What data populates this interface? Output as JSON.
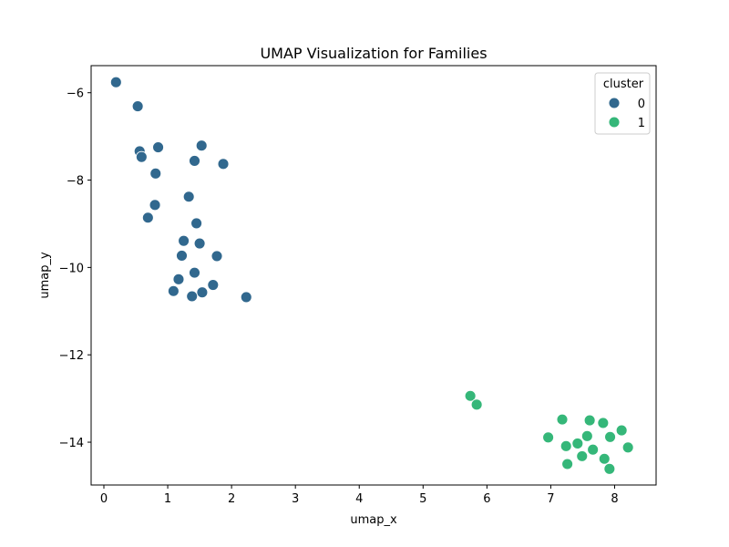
{
  "chart_data": {
    "type": "scatter",
    "title": "UMAP Visualization for Families",
    "xlabel": "umap_x",
    "ylabel": "umap_y",
    "xlim": [
      -0.2,
      8.65
    ],
    "ylim": [
      -14.98,
      -5.38
    ],
    "xticks": [
      0,
      1,
      2,
      3,
      4,
      5,
      6,
      7,
      8
    ],
    "yticks": [
      -6,
      -8,
      -10,
      -12,
      -14
    ],
    "grid": false,
    "legend": {
      "title": "cluster",
      "placement": "top-right",
      "entries": [
        {
          "label": "0",
          "color": "#31688e"
        },
        {
          "label": "1",
          "color": "#35b779"
        }
      ]
    },
    "series": [
      {
        "name": "0",
        "color": "#31688e",
        "points": [
          [
            0.19,
            -5.76
          ],
          [
            0.53,
            -6.31
          ],
          [
            0.56,
            -7.34
          ],
          [
            0.59,
            -7.47
          ],
          [
            0.85,
            -7.25
          ],
          [
            0.81,
            -7.85
          ],
          [
            1.53,
            -7.21
          ],
          [
            1.42,
            -7.56
          ],
          [
            1.87,
            -7.63
          ],
          [
            0.8,
            -8.57
          ],
          [
            0.69,
            -8.86
          ],
          [
            1.33,
            -8.38
          ],
          [
            1.45,
            -8.99
          ],
          [
            1.25,
            -9.39
          ],
          [
            1.5,
            -9.45
          ],
          [
            1.22,
            -9.73
          ],
          [
            1.77,
            -9.74
          ],
          [
            1.42,
            -10.12
          ],
          [
            1.17,
            -10.27
          ],
          [
            1.71,
            -10.4
          ],
          [
            1.09,
            -10.54
          ],
          [
            1.54,
            -10.57
          ],
          [
            1.38,
            -10.66
          ],
          [
            2.23,
            -10.68
          ]
        ]
      },
      {
        "name": "1",
        "color": "#35b779",
        "points": [
          [
            5.74,
            -12.94
          ],
          [
            5.84,
            -13.14
          ],
          [
            7.18,
            -13.48
          ],
          [
            7.61,
            -13.5
          ],
          [
            7.82,
            -13.56
          ],
          [
            8.11,
            -13.73
          ],
          [
            7.57,
            -13.86
          ],
          [
            7.93,
            -13.88
          ],
          [
            6.96,
            -13.89
          ],
          [
            7.42,
            -14.03
          ],
          [
            7.24,
            -14.09
          ],
          [
            7.66,
            -14.17
          ],
          [
            8.21,
            -14.12
          ],
          [
            7.49,
            -14.32
          ],
          [
            7.84,
            -14.38
          ],
          [
            7.26,
            -14.5
          ],
          [
            7.92,
            -14.61
          ]
        ]
      }
    ]
  }
}
